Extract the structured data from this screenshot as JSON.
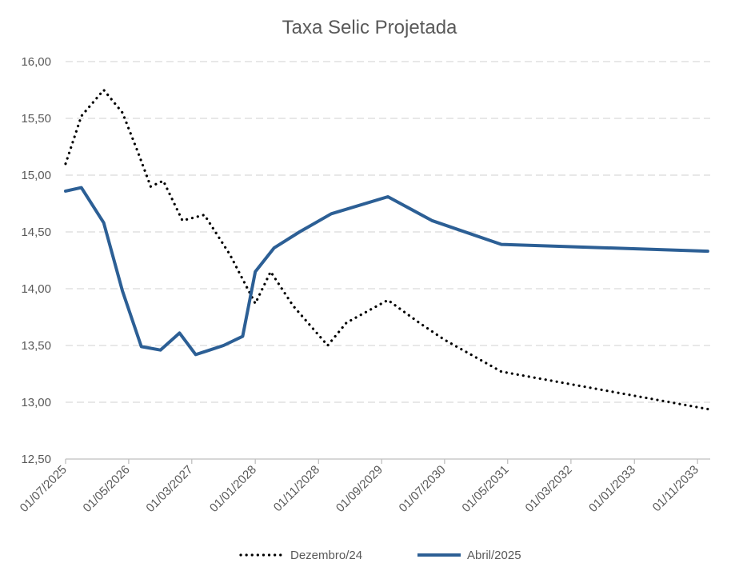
{
  "chart_data": {
    "type": "line",
    "title": "Taxa Selic Projetada",
    "xlabel": "",
    "ylabel": "",
    "ylim": [
      12.5,
      16.0
    ],
    "ytick_labels": [
      "12,50",
      "13,00",
      "13,50",
      "14,00",
      "14,50",
      "15,00",
      "15,50",
      "16,00"
    ],
    "ytick_values": [
      12.5,
      13.0,
      13.5,
      14.0,
      14.5,
      15.0,
      15.5,
      16.0
    ],
    "xlim": [
      "2025-07-01",
      "2034-01-01"
    ],
    "xtick_labels": [
      "01/07/2025",
      "01/05/2026",
      "01/03/2027",
      "01/01/2028",
      "01/11/2028",
      "01/09/2029",
      "01/07/2030",
      "01/05/2031",
      "01/03/2032",
      "01/01/2033",
      "01/11/2033"
    ],
    "xtick_dates": [
      "2025-07-01",
      "2026-05-01",
      "2027-03-01",
      "2028-01-01",
      "2028-11-01",
      "2029-09-01",
      "2030-07-01",
      "2031-05-01",
      "2032-03-01",
      "2033-01-01",
      "2033-11-01"
    ],
    "grid": "horizontal-dashed",
    "legend": "bottom",
    "series": [
      {
        "name": "Dezembro/24",
        "style": "dotted",
        "color": "#000000",
        "x": [
          "2025-07-01",
          "2025-09-15",
          "2026-01-01",
          "2026-04-01",
          "2026-06-15",
          "2026-08-15",
          "2026-10-15",
          "2027-01-15",
          "2027-05-01",
          "2027-09-01",
          "2028-01-01",
          "2028-03-15",
          "2028-07-01",
          "2028-12-15",
          "2029-03-15",
          "2029-10-01",
          "2030-03-01",
          "2030-07-01",
          "2031-04-01",
          "2033-12-20"
        ],
        "values": [
          15.1,
          15.52,
          15.75,
          15.55,
          15.2,
          14.9,
          14.95,
          14.6,
          14.65,
          14.3,
          13.87,
          14.15,
          13.85,
          13.5,
          13.7,
          13.9,
          13.7,
          13.55,
          13.27,
          12.94
        ]
      },
      {
        "name": "Abril/2025",
        "style": "solid",
        "color": "#2c5f95",
        "x": [
          "2025-07-01",
          "2025-09-15",
          "2026-01-01",
          "2026-04-01",
          "2026-07-01",
          "2026-10-01",
          "2027-01-01",
          "2027-03-20",
          "2027-08-01",
          "2027-11-01",
          "2028-01-01",
          "2028-04-01",
          "2028-08-01",
          "2029-01-01",
          "2029-10-01",
          "2030-05-01",
          "2031-04-01",
          "2033-12-20"
        ],
        "values": [
          14.86,
          14.89,
          14.58,
          13.98,
          13.49,
          13.46,
          13.61,
          13.42,
          13.5,
          13.58,
          14.15,
          14.36,
          14.5,
          14.66,
          14.81,
          14.6,
          14.39,
          14.33
        ]
      }
    ]
  }
}
